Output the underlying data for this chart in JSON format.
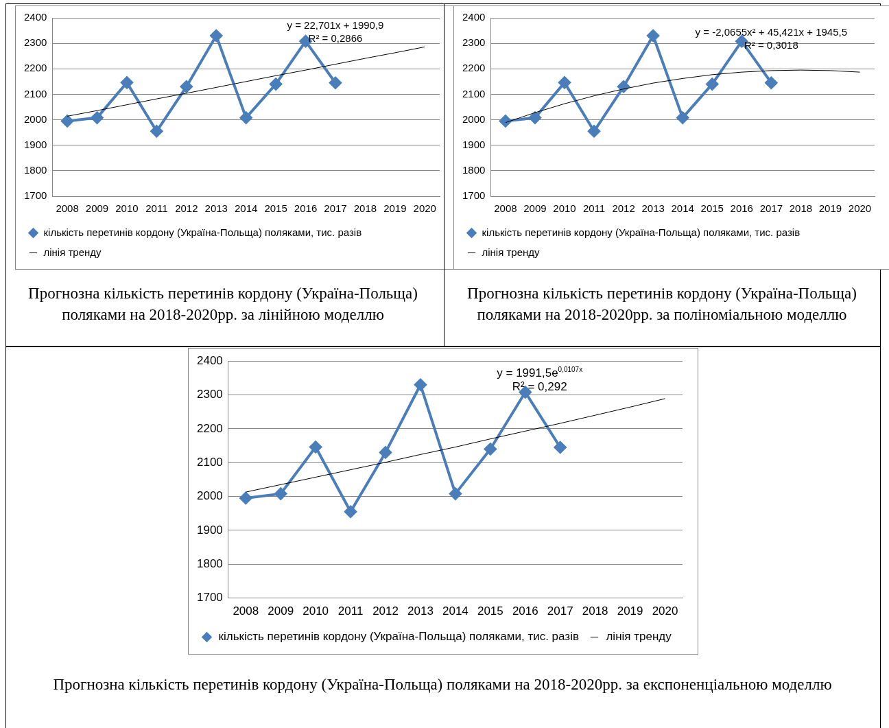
{
  "chart_data": [
    {
      "type": "line",
      "title": "Прогнозна кількість перетинів кордону (Україна-Польща) поляками на 2018-2020рр. за лінійною моделлю",
      "categories": [
        "2008",
        "2009",
        "2010",
        "2011",
        "2012",
        "2013",
        "2014",
        "2015",
        "2016",
        "2017",
        "2018",
        "2019",
        "2020"
      ],
      "series": [
        {
          "name": "кількість перетинів кордону (Україна-Польща) поляками, тис. разів",
          "color": "#4a7ebb",
          "marker": "diamond",
          "values": [
            1995,
            2008,
            2146,
            1955,
            2130,
            2330,
            2008,
            2140,
            2308,
            2145,
            null,
            null,
            null
          ]
        },
        {
          "name": "лінія тренду",
          "color": "#000000",
          "marker": "none",
          "values": [
            2014,
            2036,
            2059,
            2082,
            2104,
            2127,
            2150,
            2173,
            2195,
            2218,
            2241,
            2263,
            2286
          ]
        }
      ],
      "ylim": [
        1700,
        2400
      ],
      "yticks": [
        1700,
        1800,
        1900,
        2000,
        2100,
        2200,
        2300,
        2400
      ],
      "grid": "y",
      "legend": "bottom",
      "annotations": [
        "y = 22,701x + 1990,9",
        "R² = 0,2866"
      ]
    },
    {
      "type": "line",
      "title": "Прогнозна кількість перетинів кордону (Україна-Польща) поляками на 2018-2020рр. за поліноміальною моделлю",
      "categories": [
        "2008",
        "2009",
        "2010",
        "2011",
        "2012",
        "2013",
        "2014",
        "2015",
        "2016",
        "2017",
        "2018",
        "2019",
        "2020"
      ],
      "series": [
        {
          "name": "кількість перетинів кордону (Україна-Польща) поляками, тис. разів",
          "color": "#4a7ebb",
          "marker": "diamond",
          "values": [
            1995,
            2008,
            2146,
            1955,
            2130,
            2330,
            2008,
            2140,
            2308,
            2145,
            null,
            null,
            null
          ]
        },
        {
          "name": "лінія тренду",
          "color": "#000000",
          "marker": "none",
          "values": [
            1989,
            2028,
            2063,
            2094,
            2121,
            2144,
            2162,
            2177,
            2187,
            2193,
            2195,
            2193,
            2187
          ]
        }
      ],
      "ylim": [
        1700,
        2400
      ],
      "yticks": [
        1700,
        1800,
        1900,
        2000,
        2100,
        2200,
        2300,
        2400
      ],
      "grid": "y",
      "legend": "bottom",
      "annotations": [
        "y = -2,0655x² + 45,421x + 1945,5",
        "R² = 0,3018"
      ]
    },
    {
      "type": "line",
      "title": "Прогнозна кількість перетинів кордону (Україна-Польща) поляками на 2018-2020рр. за експоненціальною моделлю",
      "categories": [
        "2008",
        "2009",
        "2010",
        "2011",
        "2012",
        "2013",
        "2014",
        "2015",
        "2016",
        "2017",
        "2018",
        "2019",
        "2020"
      ],
      "series": [
        {
          "name": "кількість перетинів кордону (Україна-Польща) поляками, тис. разів",
          "color": "#4a7ebb",
          "marker": "diamond",
          "values": [
            1995,
            2008,
            2146,
            1955,
            2130,
            2330,
            2008,
            2140,
            2308,
            2145,
            null,
            null,
            null
          ]
        },
        {
          "name": "лінія тренду",
          "color": "#000000",
          "marker": "none",
          "values": [
            2013,
            2035,
            2057,
            2079,
            2101,
            2124,
            2146,
            2170,
            2193,
            2216,
            2240,
            2264,
            2289
          ]
        }
      ],
      "ylim": [
        1700,
        2400
      ],
      "yticks": [
        1700,
        1800,
        1900,
        2000,
        2100,
        2200,
        2300,
        2400
      ],
      "grid": "y",
      "legend": "bottom",
      "annotations": [
        "y = 1991,5e$^{0,0107x}$",
        "R² = 0,292"
      ]
    }
  ]
}
